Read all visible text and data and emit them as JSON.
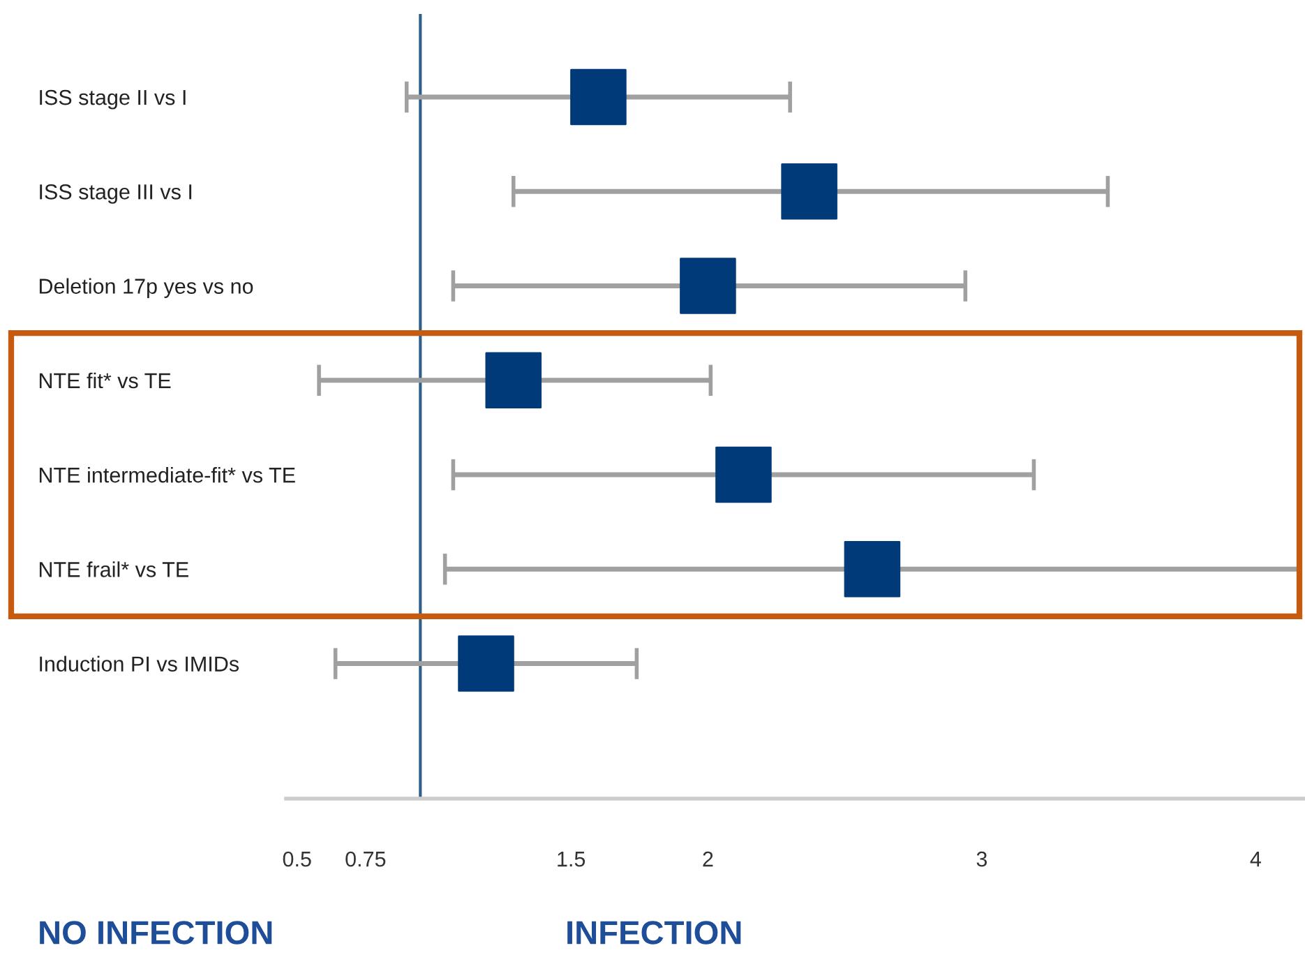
{
  "chart_data": {
    "type": "scatter",
    "orientation": "horizontal",
    "marker": "square",
    "color": "#003a78",
    "categories": [
      "ISS stage II vs I",
      "ISS stage III vs I",
      "Deletion 17p yes vs no",
      "NTE fit* vs TE",
      "NTE intermediate-fit* vs TE",
      "NTE frail* vs TE",
      "Induction PI vs IMIDs"
    ],
    "values": [
      1.6,
      2.37,
      2.0,
      1.29,
      2.13,
      2.6,
      1.19
    ],
    "errors": [
      [
        0.9,
        2.3
      ],
      [
        1.29,
        3.46
      ],
      [
        1.07,
        2.94
      ],
      [
        0.58,
        2.01
      ],
      [
        1.07,
        3.19
      ],
      [
        1.04,
        4.16
      ],
      [
        0.64,
        1.74
      ]
    ],
    "xlim": [
      0.46,
      4.18
    ],
    "xticks": [
      0.5,
      0.75,
      1.5,
      2,
      3,
      4
    ],
    "ref_lines": [
      {
        "axis": "x",
        "value": 0.95,
        "color": "#2f5f8a"
      }
    ],
    "grid": false,
    "legend": false,
    "annotations": [
      "NO INFECTION",
      "INFECTION"
    ]
  }
}
